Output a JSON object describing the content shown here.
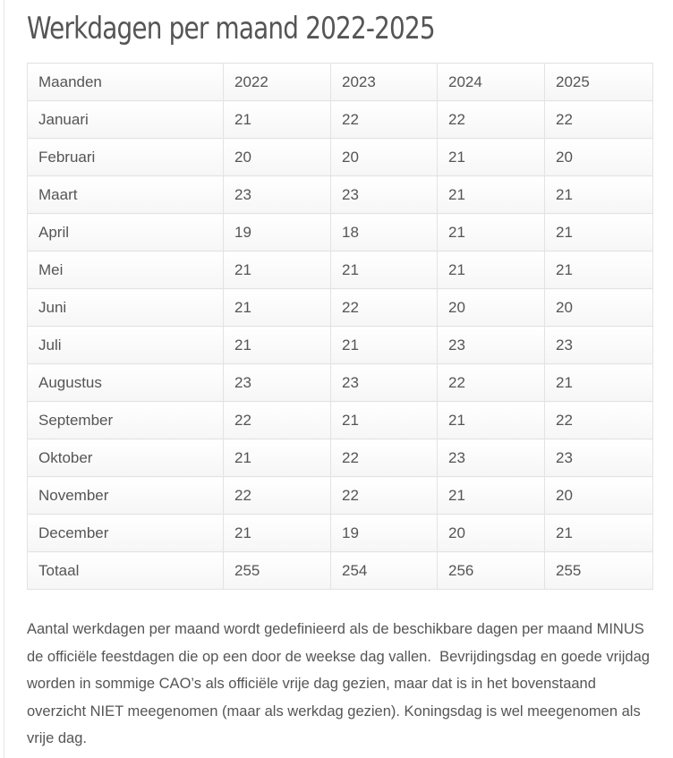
{
  "title": "Werkdagen per maand 2022-2025",
  "table": {
    "header": [
      "Maanden",
      "2022",
      "2023",
      "2024",
      "2025"
    ],
    "rows": [
      [
        "Januari",
        "21",
        "22",
        "22",
        "22"
      ],
      [
        "Februari",
        "20",
        "20",
        "21",
        "20"
      ],
      [
        "Maart",
        "23",
        "23",
        "21",
        "21"
      ],
      [
        "April",
        "19",
        "18",
        "21",
        "21"
      ],
      [
        "Mei",
        "21",
        "21",
        "21",
        "21"
      ],
      [
        "Juni",
        "21",
        "22",
        "20",
        "20"
      ],
      [
        "Juli",
        "21",
        "21",
        "23",
        "23"
      ],
      [
        "Augustus",
        "23",
        "23",
        "22",
        "21"
      ],
      [
        "September",
        "22",
        "21",
        "21",
        "22"
      ],
      [
        "Oktober",
        "21",
        "22",
        "23",
        "23"
      ],
      [
        "November",
        "22",
        "22",
        "21",
        "20"
      ],
      [
        "December",
        "21",
        "19",
        "20",
        "21"
      ],
      [
        "Totaal",
        "255",
        "254",
        "256",
        "255"
      ]
    ]
  },
  "description": "Aantal werkdagen per maand wordt gedefinieerd als de beschikbare dagen per maand MINUS de officiële feestdagen die op een door de weekse dag vallen.  Bevrijdingsdag en goede vrijdag worden in sommige CAO’s als officiële vrije dag gezien, maar dat is in het bovenstaand overzicht NIET meegenomen (maar als werkdag gezien). Koningsdag is wel meegenomen als vrije dag."
}
